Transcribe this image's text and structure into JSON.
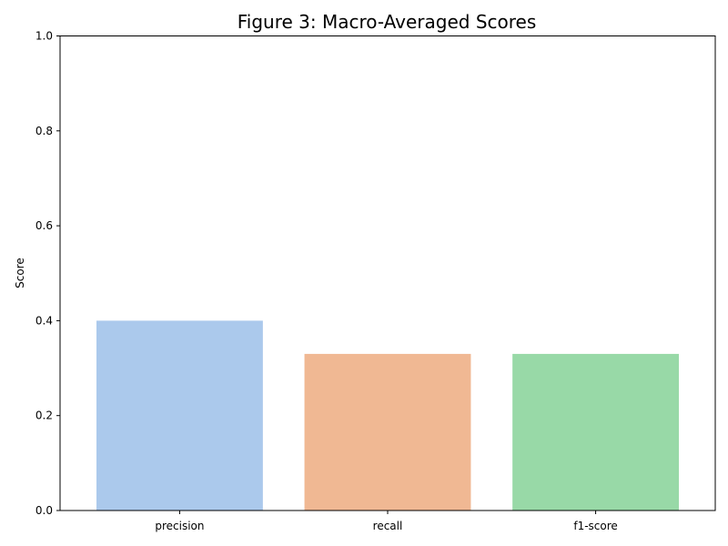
{
  "chart_data": {
    "type": "bar",
    "title": "Figure 3: Macro-Averaged Scores",
    "xlabel": "",
    "ylabel": "Score",
    "categories": [
      "precision",
      "recall",
      "f1-score"
    ],
    "values": [
      0.4,
      0.33,
      0.33
    ],
    "colors": [
      "#abc9ec",
      "#f0b893",
      "#98d9a7"
    ],
    "ylim": [
      0,
      1.0
    ],
    "yticks": [
      "0.0",
      "0.2",
      "0.4",
      "0.6",
      "0.8",
      "1.0"
    ],
    "grid": false,
    "legend": "none"
  }
}
